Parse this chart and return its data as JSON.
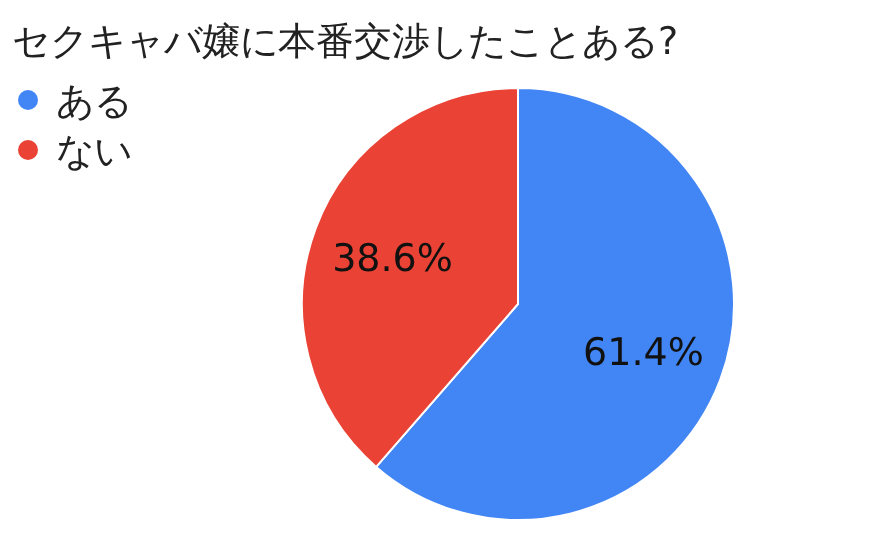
{
  "chart_data": {
    "type": "pie",
    "title": "セクキャバ嬢に本番交渉したことある?",
    "categories": [
      "ある",
      "ない"
    ],
    "values": [
      61.4,
      38.6
    ],
    "colors": [
      "#4285f4",
      "#ea4335"
    ],
    "value_labels": [
      "61.4%",
      "38.6%"
    ],
    "legend": "top left"
  }
}
